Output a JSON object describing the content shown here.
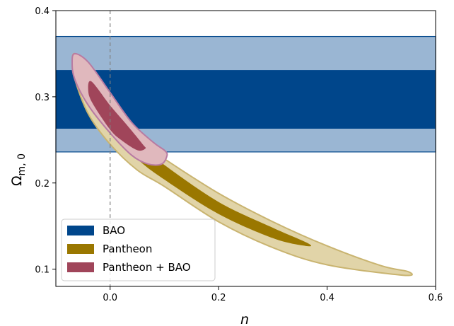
{
  "chart_data": {
    "type": "contour",
    "xlabel": "n",
    "ylabel": "Ω",
    "ylabel_sub": "m, 0",
    "xlim": [
      -0.1,
      0.6
    ],
    "ylim": [
      0.08,
      0.4
    ],
    "x_ticks": [
      0.0,
      0.2,
      0.4,
      0.6
    ],
    "x_tick_labels": [
      "0.0",
      "0.2",
      "0.4",
      "0.6"
    ],
    "y_ticks": [
      0.1,
      0.2,
      0.3,
      0.4
    ],
    "y_tick_labels": [
      "0.1",
      "0.2",
      "0.3",
      "0.4"
    ],
    "reference_line": {
      "x": 0.0,
      "style": "dashed"
    },
    "legend_position": "lower-left",
    "series": [
      {
        "name": "BAO",
        "kind": "band",
        "color": "#00468b",
        "outer_color": "#9ab6d3",
        "inner_range": [
          0.263,
          0.331
        ],
        "outer_range": [
          0.236,
          0.37
        ]
      },
      {
        "name": "Pantheon",
        "kind": "contour",
        "color": "#9a7700",
        "outer_color": "#e1d4a8",
        "edge_color": "#c9b470",
        "outer": [
          [
            -0.065,
            0.35
          ],
          [
            -0.04,
            0.335
          ],
          [
            0.0,
            0.3
          ],
          [
            0.05,
            0.25
          ],
          [
            0.1,
            0.228
          ],
          [
            0.2,
            0.188
          ],
          [
            0.3,
            0.155
          ],
          [
            0.4,
            0.127
          ],
          [
            0.5,
            0.104
          ],
          [
            0.55,
            0.097
          ],
          [
            0.54,
            0.093
          ],
          [
            0.4,
            0.105
          ],
          [
            0.3,
            0.125
          ],
          [
            0.2,
            0.155
          ],
          [
            0.1,
            0.196
          ],
          [
            0.05,
            0.215
          ],
          [
            0.0,
            0.245
          ],
          [
            -0.04,
            0.28
          ],
          [
            -0.065,
            0.32
          ],
          [
            -0.07,
            0.34
          ]
        ],
        "inner": [
          [
            -0.04,
            0.316
          ],
          [
            0.0,
            0.284
          ],
          [
            0.05,
            0.247
          ],
          [
            0.1,
            0.221
          ],
          [
            0.2,
            0.178
          ],
          [
            0.3,
            0.148
          ],
          [
            0.365,
            0.13
          ],
          [
            0.36,
            0.127
          ],
          [
            0.3,
            0.136
          ],
          [
            0.2,
            0.164
          ],
          [
            0.1,
            0.204
          ],
          [
            0.05,
            0.228
          ],
          [
            0.0,
            0.262
          ],
          [
            -0.03,
            0.292
          ],
          [
            -0.045,
            0.31
          ]
        ]
      },
      {
        "name": "Pantheon + BAO",
        "kind": "contour",
        "color": "#a0455a",
        "outer_color": "#e0b8bd",
        "edge_color": "#b87ba2",
        "outer": [
          [
            -0.065,
            0.35
          ],
          [
            -0.04,
            0.34
          ],
          [
            0.0,
            0.305
          ],
          [
            0.04,
            0.27
          ],
          [
            0.08,
            0.247
          ],
          [
            0.1,
            0.238
          ],
          [
            0.105,
            0.232
          ],
          [
            0.095,
            0.222
          ],
          [
            0.07,
            0.222
          ],
          [
            0.04,
            0.232
          ],
          [
            0.0,
            0.258
          ],
          [
            -0.04,
            0.29
          ],
          [
            -0.065,
            0.32
          ],
          [
            -0.07,
            0.34
          ]
        ],
        "inner": [
          [
            -0.035,
            0.318
          ],
          [
            0.0,
            0.29
          ],
          [
            0.03,
            0.268
          ],
          [
            0.06,
            0.245
          ],
          [
            0.065,
            0.24
          ],
          [
            0.05,
            0.238
          ],
          [
            0.02,
            0.25
          ],
          [
            0.0,
            0.262
          ],
          [
            -0.03,
            0.29
          ],
          [
            -0.04,
            0.305
          ]
        ]
      }
    ]
  }
}
